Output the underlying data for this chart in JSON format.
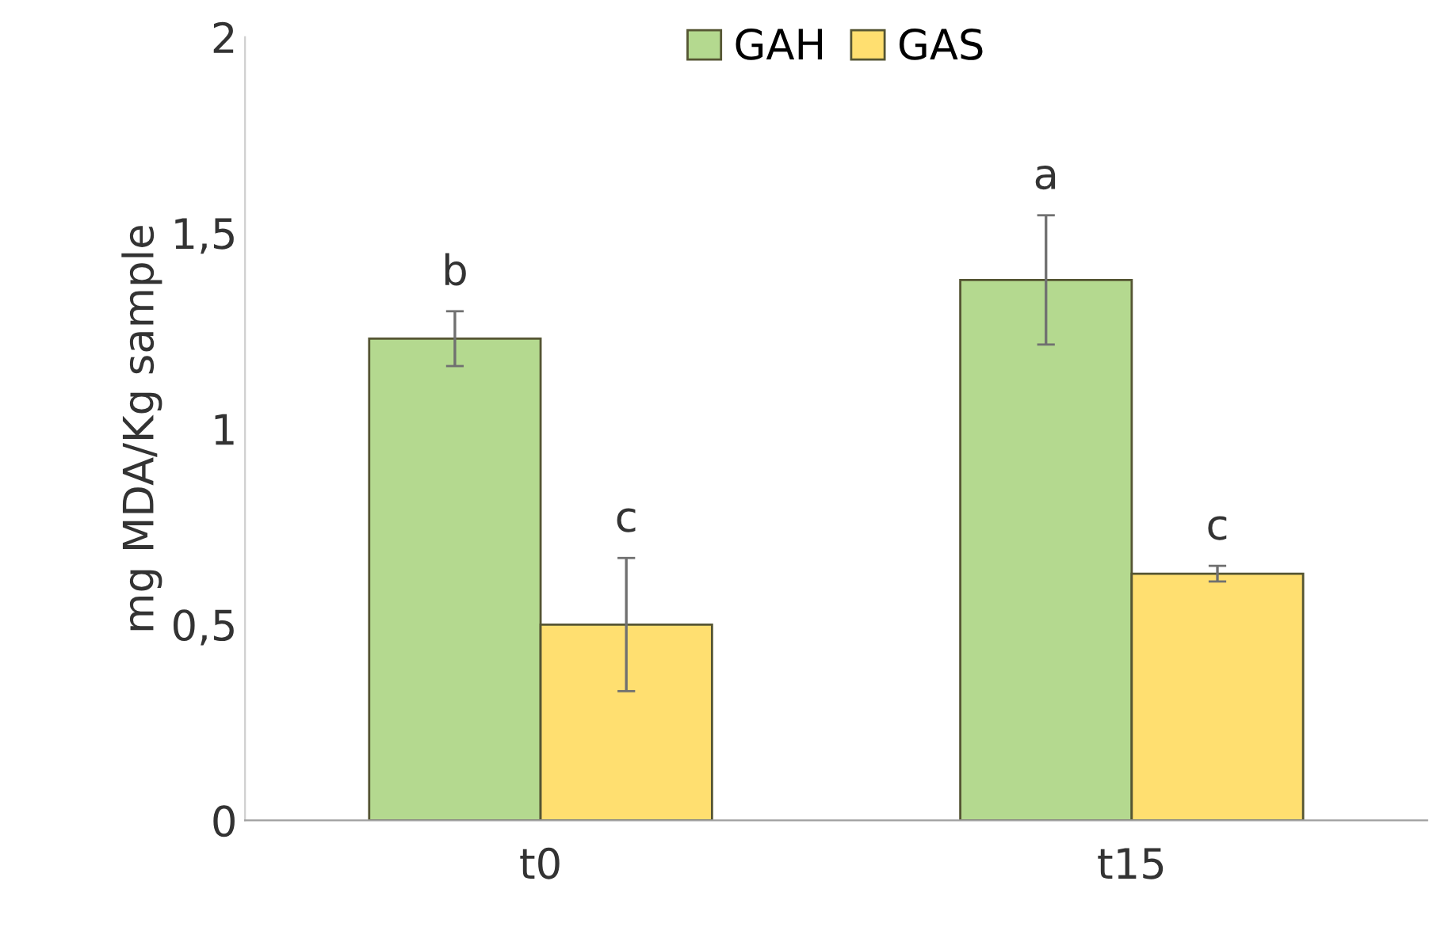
{
  "chart_data": {
    "type": "bar",
    "ylabel": "mg MDA/Kg sample",
    "categories": [
      "t0",
      "t15"
    ],
    "series": [
      {
        "name": "GAH",
        "color": "#b4d98f",
        "values": [
          1.23,
          1.38
        ],
        "errors": [
          0.07,
          0.165
        ]
      },
      {
        "name": "GAS",
        "color": "#ffdf70",
        "values": [
          0.5,
          0.63
        ],
        "errors": [
          0.17,
          0.02
        ]
      }
    ],
    "ylim": [
      0,
      2
    ],
    "yticks": [
      0,
      {
        "value": 0.5,
        "label": "0,5"
      },
      1,
      {
        "value": 1.5,
        "label": "1,5"
      },
      2
    ],
    "annotations": [
      "b",
      "c",
      "a",
      "c"
    ],
    "grid": false,
    "legend": "top"
  }
}
